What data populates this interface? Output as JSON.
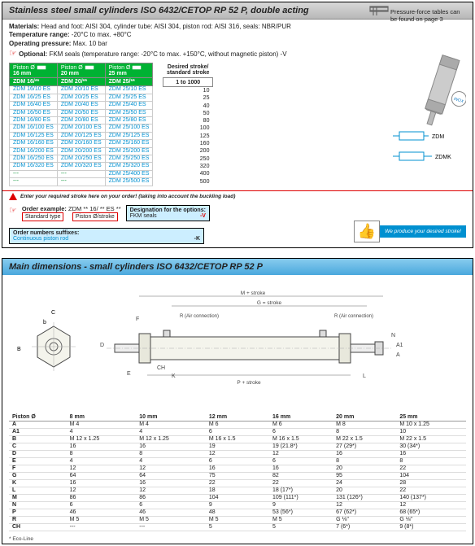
{
  "top": {
    "title": "Stainless steel small cylinders ISO 6432/CETOP RP 52 P, double acting",
    "materials": "Head and foot: AISI 304, cylinder tube: AISI 304, piston rod: AISI 316, seals: NBR/PUR",
    "temp_label": "Temperature range:",
    "temp_val": "-20°C to max. +80°C",
    "press_label": "Operating pressure:",
    "press_val": "Max. 10 bar",
    "opt_label": "Optional:",
    "opt_val": "FKM seals (temperature range: -20°C to max. +150°C, without magnetic piston) -V",
    "note": "Pressure-force tables can be found on page 3",
    "piston_hdr": "Piston Ø",
    "sizes": [
      "16 mm",
      "20 mm",
      "25 mm"
    ],
    "series": [
      "ZDM 16/**",
      "ZDM 20/**",
      "ZDM 25/**"
    ],
    "col16": [
      "ZDM 16/10 ES",
      "ZDM 16/25 ES",
      "ZDM 16/40 ES",
      "ZDM 16/50 ES",
      "ZDM 16/80 ES",
      "ZDM 16/100 ES",
      "ZDM 16/125 ES",
      "ZDM 16/160 ES",
      "ZDM 16/200 ES",
      "ZDM 16/250 ES",
      "ZDM 16/320 ES",
      "---",
      "---"
    ],
    "col20": [
      "ZDM 20/10 ES",
      "ZDM 20/25 ES",
      "ZDM 20/40 ES",
      "ZDM 20/50 ES",
      "ZDM 20/80 ES",
      "ZDM 20/100 ES",
      "ZDM 20/125 ES",
      "ZDM 20/160 ES",
      "ZDM 20/200 ES",
      "ZDM 20/250 ES",
      "ZDM 20/320 ES",
      "---",
      "---"
    ],
    "col25": [
      "ZDM 25/10 ES",
      "ZDM 25/25 ES",
      "ZDM 25/40 ES",
      "ZDM 25/50 ES",
      "ZDM 25/80 ES",
      "ZDM 25/100 ES",
      "ZDM 25/125 ES",
      "ZDM 25/160 ES",
      "ZDM 25/200 ES",
      "ZDM 25/250 ES",
      "ZDM 25/320 ES",
      "ZDM 25/400 ES",
      "ZDM 25/500 ES"
    ],
    "stroke_hdr1": "Desired stroke/",
    "stroke_hdr2": "standard stroke",
    "stroke_range": "1 to 1000",
    "strokes": [
      "10",
      "25",
      "40",
      "50",
      "80",
      "100",
      "125",
      "160",
      "200",
      "250",
      "320",
      "400",
      "500"
    ],
    "warn": "Enter your required stroke here on your order! (taking into account the buckling load)",
    "order_ex_label": "Order example:",
    "order_ex_val": "ZDM ** 16/ ** ES **",
    "std_type": "Standard type",
    "piston_stroke": "Piston Ø/stroke",
    "opt_box_title": "Designation for the options:",
    "opt_box_line": "FKM seals",
    "opt_box_suffix": "-V",
    "suffix_title": "Order numbers suffixes:",
    "suffix_line": "Continuous piston rod",
    "suffix_val": "-K",
    "zdm": "ZDM",
    "zdmk": "ZDMK",
    "inox": "INOX",
    "produce": "We produce your desired stroke!"
  },
  "bottom": {
    "title": "Main dimensions - small cylinders ISO 6432/CETOP RP 52 P",
    "m_stroke": "M + stroke",
    "g_stroke": "G = stroke",
    "r_air": "R (Air connection)",
    "p_stroke": "P + stroke",
    "piston_hdr": "Piston Ø",
    "cols": [
      "8 mm",
      "10 mm",
      "12 mm",
      "16 mm",
      "20 mm",
      "25 mm"
    ],
    "rows": [
      {
        "k": "A",
        "v": [
          "M 4",
          "M 4",
          "M 6",
          "M 6",
          "M 8",
          "M 10 x 1.25"
        ]
      },
      {
        "k": "A1",
        "v": [
          "4",
          "4",
          "6",
          "6",
          "8",
          "10"
        ]
      },
      {
        "k": "B",
        "v": [
          "M 12 x 1.25",
          "M 12 x 1.25",
          "M 16 x 1.5",
          "M 16 x 1.5",
          "M 22 x 1.5",
          "M 22 x 1.5"
        ]
      },
      {
        "k": "C",
        "v": [
          "16",
          "16",
          "19",
          "19 (21.8*)",
          "27 (29*)",
          "30 (34*)"
        ]
      },
      {
        "k": "D",
        "v": [
          "8",
          "8",
          "12",
          "12",
          "16",
          "16"
        ]
      },
      {
        "k": "E",
        "v": [
          "4",
          "4",
          "6",
          "6",
          "8",
          "8"
        ]
      },
      {
        "k": "F",
        "v": [
          "12",
          "12",
          "16",
          "16",
          "20",
          "22"
        ]
      },
      {
        "k": "G",
        "v": [
          "64",
          "64",
          "75",
          "82",
          "95",
          "104"
        ]
      },
      {
        "k": "K",
        "v": [
          "16",
          "16",
          "22",
          "22",
          "24",
          "28"
        ]
      },
      {
        "k": "L",
        "v": [
          "12",
          "12",
          "18",
          "18 (17*)",
          "20",
          "22"
        ]
      },
      {
        "k": "M",
        "v": [
          "86",
          "86",
          "104",
          "109 (111*)",
          "131 (126*)",
          "140 (137*)"
        ]
      },
      {
        "k": "N",
        "v": [
          "6",
          "6",
          "9",
          "9",
          "12",
          "12"
        ]
      },
      {
        "k": "P",
        "v": [
          "46",
          "46",
          "48",
          "53 (56*)",
          "67 (62*)",
          "68 (65*)"
        ]
      },
      {
        "k": "R",
        "v": [
          "M 5",
          "M 5",
          "M 5",
          "M 5",
          "G ⅛\"",
          "G ⅛\""
        ]
      },
      {
        "k": "CH",
        "v": [
          "---",
          "---",
          "5",
          "5",
          "7 (6*)",
          "9 (8*)"
        ]
      }
    ],
    "ecoline": "* Eco-Line",
    "dim_labels": [
      "A",
      "B",
      "C",
      "D",
      "E",
      "F",
      "G",
      "K",
      "L",
      "M",
      "N",
      "P",
      "R",
      "CH",
      "A1"
    ]
  },
  "colors": {
    "green": "#00b233",
    "blue_text": "#0090d0",
    "red": "#d00000",
    "header_blue": "#4aa8dd"
  }
}
